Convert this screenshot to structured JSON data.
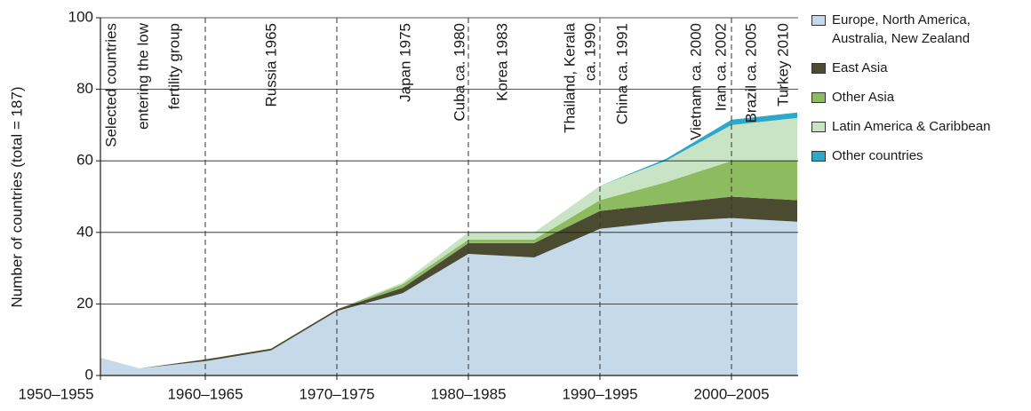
{
  "chart_data": {
    "type": "area",
    "stacked": true,
    "y_label": "Number of countries (total = 187)",
    "categories": [
      "1950–1955",
      null,
      "1960–1965",
      null,
      "1970–1975",
      null,
      "1980–1985",
      null,
      "1990–1995",
      null,
      "2000–2005",
      null
    ],
    "ylim": [
      0,
      100
    ],
    "yticks": [
      0,
      20,
      40,
      60,
      80,
      100
    ],
    "grid": true,
    "legend": "right",
    "series": [
      {
        "name": "Europe, North America, Australia, New Zealand",
        "color": "#c6d9e8",
        "values": [
          7,
          2,
          4,
          7,
          18,
          23,
          34,
          33,
          41,
          43,
          44,
          43
        ]
      },
      {
        "name": "East Asia",
        "color": "#4b4b31",
        "values": [
          0,
          0,
          0.5,
          0.5,
          0.5,
          1.5,
          3,
          4,
          5,
          5,
          6,
          6
        ]
      },
      {
        "name": "Other Asia",
        "color": "#8dbb5f",
        "values": [
          0,
          0,
          0,
          0,
          0,
          1,
          1,
          1,
          3,
          6,
          10,
          11
        ]
      },
      {
        "name": "Latin America & Caribbean",
        "color": "#c9e4c4",
        "values": [
          0,
          0,
          0,
          0,
          0,
          0.5,
          2,
          2,
          4,
          6,
          10,
          12
        ]
      },
      {
        "name": "Other countries",
        "color": "#2ca9c9",
        "values": [
          0,
          0,
          0,
          0,
          0,
          0,
          0,
          0,
          0,
          0.5,
          1.5,
          1.5
        ]
      }
    ],
    "annotations": [
      [
        "Selected countries",
        "entering the low",
        "fertility group"
      ],
      [
        "Russia 1965"
      ],
      [
        "Japan 1975"
      ],
      [
        "Cuba ca. 1980"
      ],
      [
        "Korea 1983"
      ],
      [
        "Thailand, Kerala",
        "ca. 1990"
      ],
      [
        "China ca. 1991"
      ],
      [
        "Vietnam ca. 2000"
      ],
      [
        "Iran ca. 2002"
      ],
      [
        "Brazil ca. 2005"
      ],
      [
        "Turkey 2010"
      ]
    ]
  }
}
